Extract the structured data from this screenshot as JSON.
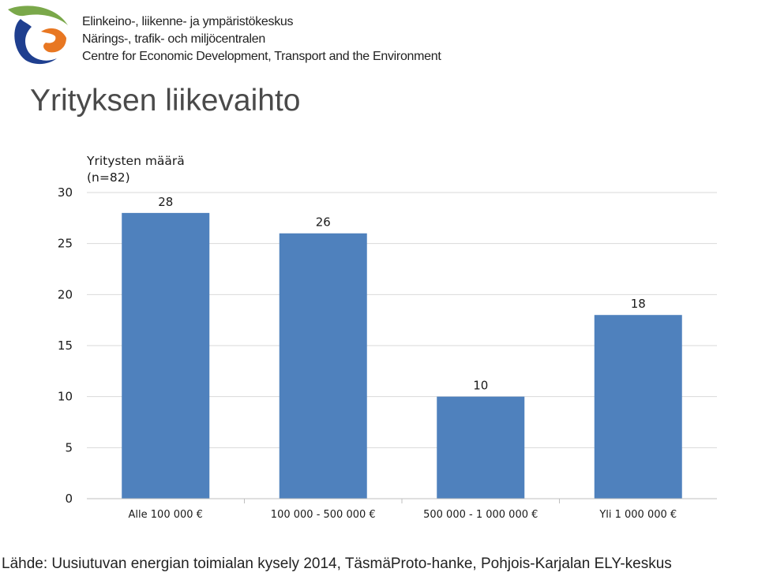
{
  "header": {
    "org_lines": [
      "Elinkeino-, liikenne- ja ympäristökeskus",
      "Närings-, trafik- och miljöcentralen",
      "Centre for Economic Development, Transport and the Environment"
    ],
    "logo_colors": {
      "green": "#7aa84a",
      "orange": "#e87722",
      "blue": "#1f3f8f"
    }
  },
  "page": {
    "title": "Yrityksen liikevaihto"
  },
  "chart_data": {
    "type": "bar",
    "title": "Yritysten määrä",
    "subtitle": "(n=82)",
    "categories": [
      "Alle 100 000 €",
      "100 000 - 500 000 €",
      "500 000 - 1 000 000 €",
      "Yli 1 000 000 €"
    ],
    "values": [
      28,
      26,
      10,
      18
    ],
    "ylim": [
      0,
      30
    ],
    "yticks": [
      0,
      5,
      10,
      15,
      20,
      25,
      30
    ],
    "grid": true,
    "bar_color": "#4f81bd",
    "grid_color": "#d9d9d9",
    "data_labels": true
  },
  "source": "Lähde: Uusiutuvan energian toimialan kysely 2014, TäsmäProto-hanke, Pohjois-Karjalan ELY-keskus"
}
